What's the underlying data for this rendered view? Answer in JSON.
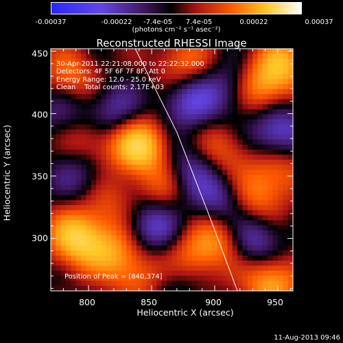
{
  "chart_data": {
    "type": "heatmap",
    "title": "Reconstructed RHESSI Image",
    "xlabel": "Heliocentric X (arcsec)",
    "ylabel": "Heliocentric Y (arcsec)",
    "xlim": [
      770,
      962
    ],
    "ylim": [
      258,
      452
    ],
    "x_ticks": [
      "800",
      "850",
      "900",
      "950"
    ],
    "y_ticks": [
      "300",
      "350",
      "400",
      "450"
    ],
    "colorbar": {
      "ticks": [
        "-0.00037",
        "-0.00022",
        "-7.4e-05",
        "7.4e-05",
        "0.00022",
        "0.00037"
      ],
      "unit": "(photons cm⁻² s⁻¹ asec⁻²)",
      "range": [
        -0.00037,
        0.00037
      ]
    },
    "annotations": [
      "30-Apr-2011 22:21:08.000 to 22:22:32.000",
      "Detectors: 4F 5F 6F 7F 8F, Att 0",
      "Energy Range: 12.0 - 25.0 keV",
      "Clean    Total counts: 2.17E+03"
    ],
    "peak_label": "Position of Peak = [840,374]",
    "limb_line": [
      [
        837,
        452
      ],
      [
        870,
        385
      ],
      [
        895,
        320
      ],
      [
        918,
        258
      ]
    ],
    "sources": [
      {
        "x": 840,
        "y": 374,
        "v": 1.0
      },
      {
        "x": 790,
        "y": 300,
        "v": 0.9
      },
      {
        "x": 935,
        "y": 420,
        "v": 0.7
      },
      {
        "x": 945,
        "y": 265,
        "v": 0.75
      },
      {
        "x": 880,
        "y": 282,
        "v": 0.6
      },
      {
        "x": 905,
        "y": 300,
        "v": 0.6
      },
      {
        "x": 820,
        "y": 290,
        "v": 0.55
      },
      {
        "x": 930,
        "y": 330,
        "v": 0.55
      },
      {
        "x": 785,
        "y": 430,
        "v": 0.5
      },
      {
        "x": 875,
        "y": 440,
        "v": 0.5
      },
      {
        "x": 955,
        "y": 440,
        "v": 0.65
      },
      {
        "x": 800,
        "y": 380,
        "v": 0.45
      },
      {
        "x": 905,
        "y": 370,
        "v": 0.45
      },
      {
        "x": 860,
        "y": 340,
        "v": 0.4
      },
      {
        "x": 950,
        "y": 355,
        "v": 0.5
      },
      {
        "x": 815,
        "y": 330,
        "v": 0.35
      },
      {
        "x": 840,
        "y": 270,
        "v": 0.45
      },
      {
        "x": 880,
        "y": 410,
        "v": -0.6
      },
      {
        "x": 950,
        "y": 385,
        "v": -0.7
      },
      {
        "x": 850,
        "y": 310,
        "v": -0.6
      },
      {
        "x": 820,
        "y": 400,
        "v": -0.5
      },
      {
        "x": 905,
        "y": 330,
        "v": -0.55
      },
      {
        "x": 930,
        "y": 300,
        "v": -0.65
      },
      {
        "x": 880,
        "y": 355,
        "v": -0.5
      },
      {
        "x": 795,
        "y": 350,
        "v": -0.4
      },
      {
        "x": 870,
        "y": 270,
        "v": -0.4
      },
      {
        "x": 915,
        "y": 420,
        "v": -0.45
      },
      {
        "x": 780,
        "y": 400,
        "v": -0.35
      }
    ]
  },
  "footer": {
    "date": "11-Aug-2013 09:46"
  }
}
